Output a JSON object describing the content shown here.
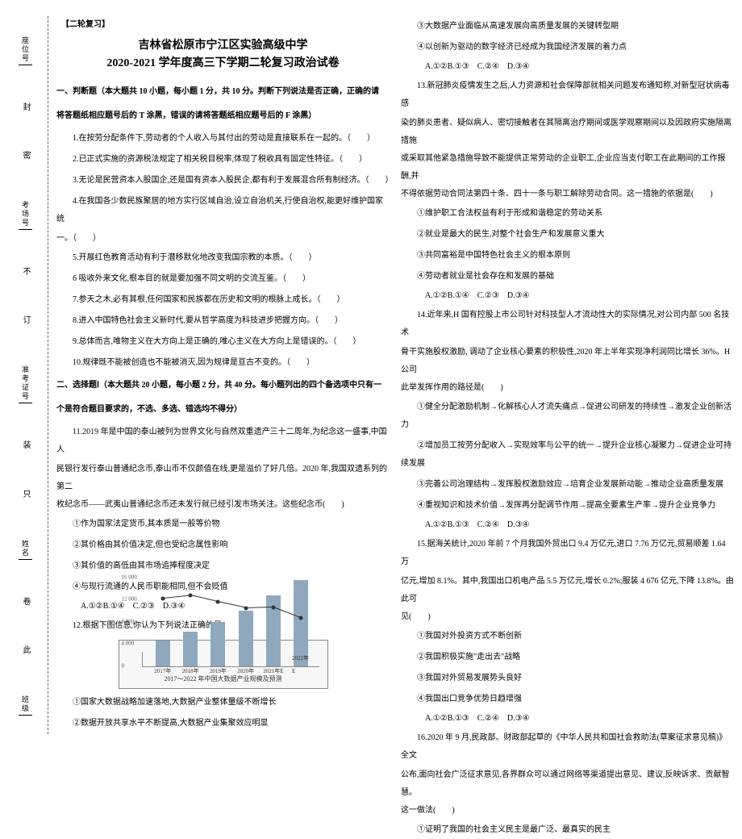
{
  "top_note": "【二轮复习】",
  "title1": "吉林省松原市宁江区实验高级中学",
  "title2": "2020-2021 学年度高三下学期二轮复习政治试卷",
  "binding": {
    "labels": [
      "封",
      "密",
      "不",
      "订",
      "装",
      "只",
      "卷",
      "此"
    ],
    "fields": [
      "座位号",
      "考场号",
      "准考证号",
      "姓名",
      "班级"
    ]
  },
  "section1_header": "一、判断题（本大题共 10 小题，每小题 1 分，共 10 分。判断下列说法是否正确，正确的请",
  "section1_header2": "将答题纸相应题号后的 T 涂黑，错误的请将答题纸相应题号后的 F 涂黑）",
  "q1": "1.在按劳分配条件下,劳动者的个人收入与其付出的劳动是直接联系在一起的。（　　）",
  "q2": "2.已正式实施的资源税法规定了相关税目税率,体现了税收具有固定性特征。（　　）",
  "q3": "3.无论是民营资本入股国企,还是国有资本入股民企,都有利于发展混合所有制经济。（　　）",
  "q4": "4.在我国各少数民族聚居的地方实行区域自治,设立自治机关,行使自治权,能更好维护国家统",
  "q4b": "一。（　　）",
  "q5": "5.开展红色教育活动有利于潜移默化地改变我国宗教的本质。（　　）",
  "q6": "6 吸收外来文化,根本目的就是要加强不同文明的交流互鉴。（　　）",
  "q7": "7.参天之木,必有其根,任何国家和民族都在历史和文明的根脉上成长。（　　）",
  "q8": "8.进入中国特色社会主义新时代,要从哲学高度为科技进步把握方向。（　　）",
  "q9": "9.总体而言,唯物主义在大方向上是正确的,唯心主义在大方向上是错误的。（　　）",
  "q10": "10.规律既不能被创造也不能被消灭,因为规律是亘古不变的。（　　）",
  "section2_header": "二、选择题Ⅰ（本大题共 20 小题，每小题 2 分，共 40 分。每小题列出的四个备选项中只有一",
  "section2_header2": "个是符合题目要求的，不选、多选、错选均不得分）",
  "q11a": "11.2019 年是中国的泰山被列为世界文化与自然双重遗产三十二周年,为纪念这一盛事,中国人",
  "q11b": "民银行发行泰山普通纪念币,泰山币不仅颜值在线,更是溢价了好几倍。2020 年,我国双遗系列的第二",
  "q11c": "枚纪念币——武夷山普通纪念币还未发行就已经引发市场关注。这些纪念币(　　)",
  "q11o1": "①作为国家法定货币,其本质是一般等价物",
  "q11o2": "②其价格由其价值决定,但也受纪念属性影响",
  "q11o3": "③其价值的高低由其市场追捧程度决定",
  "q11o4": "④与现行流通的人民币职能相同,但不会贬值",
  "q11opts": "A.①②B.①④　C.②③　D.③④",
  "q12": "12.根据下图信息,你认为下列说法正确的是(　　)",
  "chart": {
    "type": "bar+line",
    "caption": "2017～2022 年中国大数据产业规模及预测",
    "legend": [
      "规模",
      "增长率"
    ],
    "x": [
      "2017年",
      "2018年",
      "2019年",
      "2020年",
      "2021年E",
      "2022年E"
    ],
    "bar_values": [
      4700,
      6200,
      8000,
      10100,
      12800,
      15600
    ],
    "bar_color": "#8fa8bd",
    "line_values": [
      30.6,
      31.9,
      29.0,
      26.3,
      26.7,
      21.9
    ],
    "ylim": [
      0,
      16000
    ],
    "ytick_step": 4000,
    "y_labels": [
      "0",
      "4 000",
      "8 000",
      "12 000",
      "16 000"
    ],
    "bg": "#f7f7f7",
    "border": "#888888"
  },
  "q12a": "①国家大数据战略加速落地,大数据产业整体量级不断增长",
  "q12b": "②数据开放共享水平不断提高,大数据产业集聚效应明显",
  "q12c": "③大数据产业面临从高速发展向高质量发展的关键转型期",
  "q12d": "④以创新为驱动的数字经济已经成为我国经济发展的着力点",
  "q12opts": "A.①②B.①③　C.②④　D.③④",
  "q13a": "13.新冠肺炎疫情发生之后,人力资源和社会保障部就相关问题发布通知称,对新型冠状病毒感",
  "q13b": "染的肺炎患者、疑似病人、密切接触者在其隔离治疗期间或医学观察期间以及因政府实施隔离措施",
  "q13c": "或采取其他紧急措施导致不能提供正常劳动的企业职工,企业应当支付职工在此期间的工作报酬,并",
  "q13d": "不得依据劳动合同法第四十条、四十一条与职工解除劳动合同。这一措施的依据是(　　)",
  "q13o1": "①维护职工合法权益有利于形成和谐稳定的劳动关系",
  "q13o2": "②就业是最大的民生,对整个社会生产和发展意义重大",
  "q13o3": "③共同富裕是中国特色社会主义的根本原则",
  "q13o4": "④劳动者就业是社会存在和发展的基础",
  "q13opts": "A.①②B.①④　C.②③　D.③④",
  "q14a": "14.近年来,H 国有控股上市公司针对科技型人才流动性大的实际情况,对公司内部 500 名技术",
  "q14b": "骨干实施股权激励, 调动了企业核心要素的积极性,2020 年上半年实现净利润同比增长 36%。H 公司",
  "q14c": "此举发挥作用的路径是(　　)",
  "q14o1": "①健全分配激励机制→化解核心人才流失痛点→促进公司研发的持续性→激发企业创新活力",
  "q14o2": "②增加员工按劳分配收入→实现效率与公平的统一→提升企业核心凝聚力→促进企业可持续发展",
  "q14o3": "③完善公司治理结构→发挥股权激励效应→培育企业发展新动能→推动企业高质量发展",
  "q14o4": "④重视知识和技术价值→发挥再分配调节作用→提高全要素生产率→提升企业竞争力",
  "q14opts": "A.①②B.①③　C.②④　D.③④",
  "q15a": "15.据海关统计,2020 年前 7 个月我国外贸出口 9.4 万亿元,进口 7.76 万亿元,贸易顺差 1.64 万",
  "q15b": "亿元,增加 8.1%。其中,我国出口机电产品 5.5 万亿元,增长 0.2%;服装 4 676 亿元,下降 13.8%。由此可",
  "q15c": "见(　　)",
  "q15o1": "①我国对外投资方式不断创新",
  "q15o2": "②我国积极实施\"走出去\"战略",
  "q15o3": "③我国对外贸易发展势头良好",
  "q15o4": "④我国出口竞争优势日趋增强",
  "q15opts": "A.①②B.①③　C.②④　D.③④",
  "q16a": "16.2020 年 9 月,民政部、财政部起草的《中华人民共和国社会救助法(草案征求意见稿)》全文",
  "q16b": "公布,面向社会广泛征求意见,各界群众可以通过网络等渠道提出意见、建议,反映诉求、贡献智慧。",
  "q16c": "这一做法(　　)",
  "q16o1": "①证明了我国的社会主义民主是最广泛、最真实的民主"
}
